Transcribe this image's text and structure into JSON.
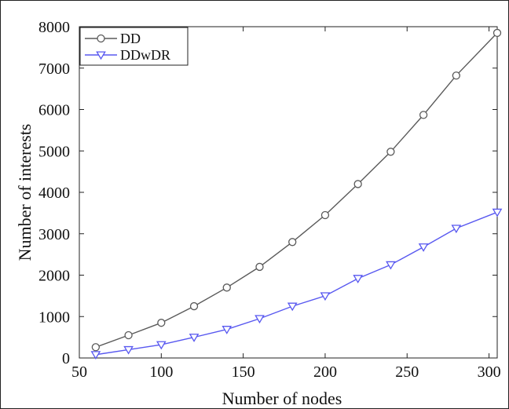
{
  "chart_data": {
    "type": "line",
    "title": "",
    "xlabel": "Number of nodes",
    "ylabel": "Number of interests",
    "xlim": [
      50,
      305
    ],
    "ylim": [
      0,
      8000
    ],
    "xticks": [
      "50",
      "100",
      "150",
      "200",
      "250",
      "300"
    ],
    "yticks": [
      "0",
      "1000",
      "2000",
      "3000",
      "4000",
      "5000",
      "6000",
      "7000",
      "8000"
    ],
    "grid": false,
    "legend_position": "top-left",
    "x": [
      60,
      80,
      100,
      120,
      140,
      160,
      180,
      200,
      220,
      240,
      260,
      280,
      305
    ],
    "series": [
      {
        "name": "DD",
        "color": "#5a5a5a",
        "marker": "circle",
        "values": [
          260,
          550,
          850,
          1250,
          1700,
          2200,
          2800,
          3450,
          4200,
          4980,
          5870,
          6820,
          7850
        ]
      },
      {
        "name": "DDwDR",
        "color": "#5858f0",
        "marker": "triangle-down",
        "values": [
          80,
          200,
          320,
          500,
          690,
          950,
          1250,
          1500,
          1920,
          2250,
          2680,
          3130,
          3520
        ]
      }
    ]
  }
}
